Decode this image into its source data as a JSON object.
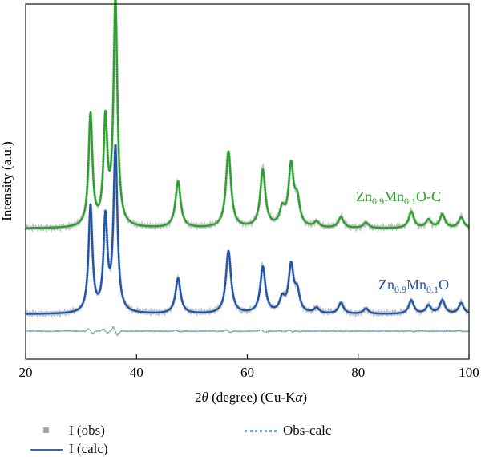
{
  "chart_data": {
    "type": "line",
    "xlabel": "2θ (degree) (Cu-Kα)",
    "xlabel_parts": {
      "pre": "2",
      "theta": "θ",
      "mid": " (degree) (Cu-K",
      "alpha": "α",
      "post": ")"
    },
    "ylabel": "Intensity (a.u.)",
    "xlim": [
      20,
      100
    ],
    "x_ticks": [
      20,
      40,
      60,
      80,
      100
    ],
    "y_ticks_shown": false,
    "legend_position": "bottom",
    "peaks_2theta": [
      31.7,
      34.4,
      36.2,
      47.5,
      56.6,
      62.8,
      66.3,
      67.9,
      69.0,
      72.5,
      76.9,
      81.4,
      89.6,
      92.7,
      95.2,
      98.6
    ],
    "series": [
      {
        "label_parts": [
          "Zn",
          "0.9",
          "Mn",
          "0.1",
          "O-C"
        ],
        "color": "#2ca02c",
        "rel_heights": [
          0.41,
          0.38,
          0.83,
          0.17,
          0.28,
          0.21,
          0.06,
          0.22,
          0.09,
          0.02,
          0.04,
          0.02,
          0.06,
          0.03,
          0.05,
          0.04
        ]
      },
      {
        "label_parts": [
          "Zn",
          "0.9",
          "Mn",
          "0.1",
          "O"
        ],
        "color": "#2155a6",
        "rel_heights": [
          0.39,
          0.34,
          0.6,
          0.13,
          0.23,
          0.17,
          0.05,
          0.17,
          0.07,
          0.02,
          0.04,
          0.02,
          0.05,
          0.03,
          0.05,
          0.04
        ]
      }
    ],
    "legend": [
      {
        "label": "I (obs)",
        "color": "#a9aaae",
        "marker": "square"
      },
      {
        "label": "I (calc)",
        "color": "#3b6aa8",
        "marker": "solid-line"
      },
      {
        "label": "Obs-calc",
        "color": "#7ea6c4",
        "marker": "dotted-line"
      }
    ]
  }
}
